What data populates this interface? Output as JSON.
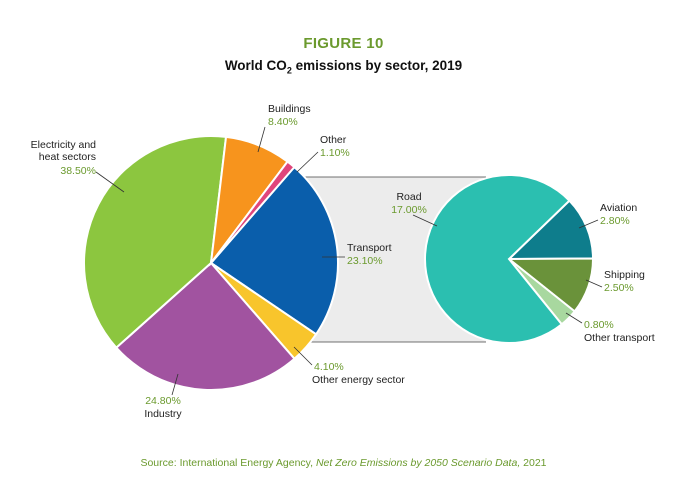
{
  "figure_label": "FIGURE 10",
  "title": {
    "pre": "World CO",
    "sub": "2",
    "post": " emissions by sector, 2019"
  },
  "source": {
    "prefix": "Source: International Energy Agency, ",
    "italic": "Net Zero Emissions by 2050 Scenario Data,",
    "suffix": " 2021"
  },
  "chart_data": [
    {
      "type": "pie",
      "name": "main",
      "slices": [
        {
          "label": "Transport",
          "value": 23.1,
          "pct": "23.10%",
          "color": "#0a5eab"
        },
        {
          "label": "Other energy sector",
          "value": 4.1,
          "pct": "4.10%",
          "color": "#f8c52c"
        },
        {
          "label": "Industry",
          "value": 24.8,
          "pct": "24.80%",
          "color": "#a153a0"
        },
        {
          "label_lines": [
            "Electricity and",
            "heat sectors"
          ],
          "value": 38.5,
          "pct": "38.50%",
          "color": "#8cc63f"
        },
        {
          "label": "Buildings",
          "value": 8.4,
          "pct": "8.40%",
          "color": "#f7941d"
        },
        {
          "label": "Other",
          "value": 1.1,
          "pct": "1.10%",
          "color": "#e0457b"
        }
      ]
    },
    {
      "type": "pie",
      "name": "transport breakdown",
      "slices": [
        {
          "label": "Aviation",
          "value": 2.8,
          "pct": "2.80%",
          "color": "#0e7d8c"
        },
        {
          "label": "Shipping",
          "value": 2.5,
          "pct": "2.50%",
          "color": "#6a923a"
        },
        {
          "label": "Other transport",
          "value": 0.8,
          "pct": "0.80%",
          "color": "#a8d89f"
        },
        {
          "label": "Road",
          "value": 17.0,
          "pct": "17.00%",
          "color": "#2bbfb0"
        }
      ]
    }
  ]
}
